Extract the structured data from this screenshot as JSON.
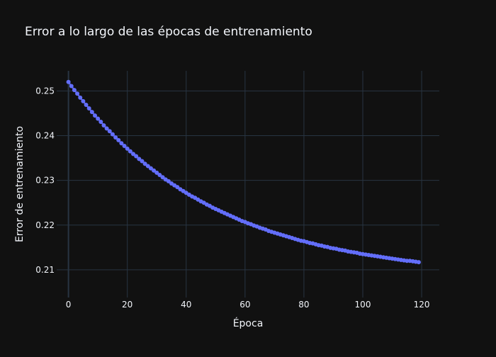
{
  "colors": {
    "background": "#111111",
    "grid": "#283442",
    "zeroline": "#283442",
    "text": "#f2f5fa",
    "series": "#636efa"
  },
  "chart_data": {
    "type": "line",
    "mode": "lines+markers",
    "title": "Error a lo largo de las épocas de entrenamiento",
    "xlabel": "Época",
    "ylabel": "Error de entrenamiento",
    "xlim": [
      -4,
      126
    ],
    "ylim": [
      0.2038,
      0.2545
    ],
    "xticks": [
      0,
      20,
      40,
      60,
      80,
      100,
      120
    ],
    "xtick_labels": [
      "0",
      "20",
      "40",
      "60",
      "80",
      "100",
      "120"
    ],
    "yticks": [
      0.21,
      0.22,
      0.23,
      0.24,
      0.25
    ],
    "ytick_labels": [
      "0.21",
      "0.22",
      "0.23",
      "0.24",
      "0.25"
    ],
    "grid": true,
    "legend": "none",
    "series": [
      {
        "color": "#636efa",
        "x": [
          0,
          1,
          2,
          3,
          4,
          5,
          6,
          7,
          8,
          9,
          10,
          11,
          12,
          13,
          14,
          15,
          16,
          17,
          18,
          19,
          20,
          21,
          22,
          23,
          24,
          25,
          26,
          27,
          28,
          29,
          30,
          31,
          32,
          33,
          34,
          35,
          36,
          37,
          38,
          39,
          40,
          41,
          42,
          43,
          44,
          45,
          46,
          47,
          48,
          49,
          50,
          51,
          52,
          53,
          54,
          55,
          56,
          57,
          58,
          59,
          60,
          61,
          62,
          63,
          64,
          65,
          66,
          67,
          68,
          69,
          70,
          71,
          72,
          73,
          74,
          75,
          76,
          77,
          78,
          79,
          80,
          81,
          82,
          83,
          84,
          85,
          86,
          87,
          88,
          89,
          90,
          91,
          92,
          93,
          94,
          95,
          96,
          97,
          98,
          99,
          100,
          101,
          102,
          103,
          104,
          105,
          106,
          107,
          108,
          109,
          110,
          111,
          112,
          113,
          114,
          115,
          116,
          117,
          118,
          119
        ],
        "y": [
          0.252,
          0.2511,
          0.2502,
          0.2494,
          0.2485,
          0.2477,
          0.2469,
          0.2461,
          0.2453,
          0.2445,
          0.2438,
          0.2431,
          0.2423,
          0.2416,
          0.241,
          0.2403,
          0.2396,
          0.239,
          0.2383,
          0.2377,
          0.2371,
          0.2365,
          0.2359,
          0.2354,
          0.2348,
          0.2343,
          0.2337,
          0.2332,
          0.2327,
          0.2322,
          0.2317,
          0.2312,
          0.2307,
          0.2302,
          0.2298,
          0.2293,
          0.2289,
          0.2285,
          0.228,
          0.2276,
          0.2272,
          0.2268,
          0.2264,
          0.2261,
          0.2257,
          0.2253,
          0.225,
          0.2246,
          0.2243,
          0.2239,
          0.2236,
          0.2233,
          0.223,
          0.2227,
          0.2224,
          0.2221,
          0.2218,
          0.2215,
          0.2212,
          0.2209,
          0.2207,
          0.2204,
          0.2202,
          0.2199,
          0.2197,
          0.2194,
          0.2192,
          0.219,
          0.2187,
          0.2185,
          0.2183,
          0.2181,
          0.2179,
          0.2177,
          0.2175,
          0.2173,
          0.2171,
          0.2169,
          0.2167,
          0.2165,
          0.2164,
          0.2162,
          0.216,
          0.2159,
          0.2157,
          0.2155,
          0.2154,
          0.2152,
          0.2151,
          0.2149,
          0.2148,
          0.2147,
          0.2145,
          0.2144,
          0.2143,
          0.2141,
          0.214,
          0.2139,
          0.2138,
          0.2136,
          0.2135,
          0.2134,
          0.2133,
          0.2132,
          0.2131,
          0.213,
          0.2129,
          0.2128,
          0.2127,
          0.2126,
          0.2125,
          0.2124,
          0.2123,
          0.2122,
          0.2121,
          0.212,
          0.212,
          0.2119,
          0.2118,
          0.2117
        ]
      }
    ]
  }
}
